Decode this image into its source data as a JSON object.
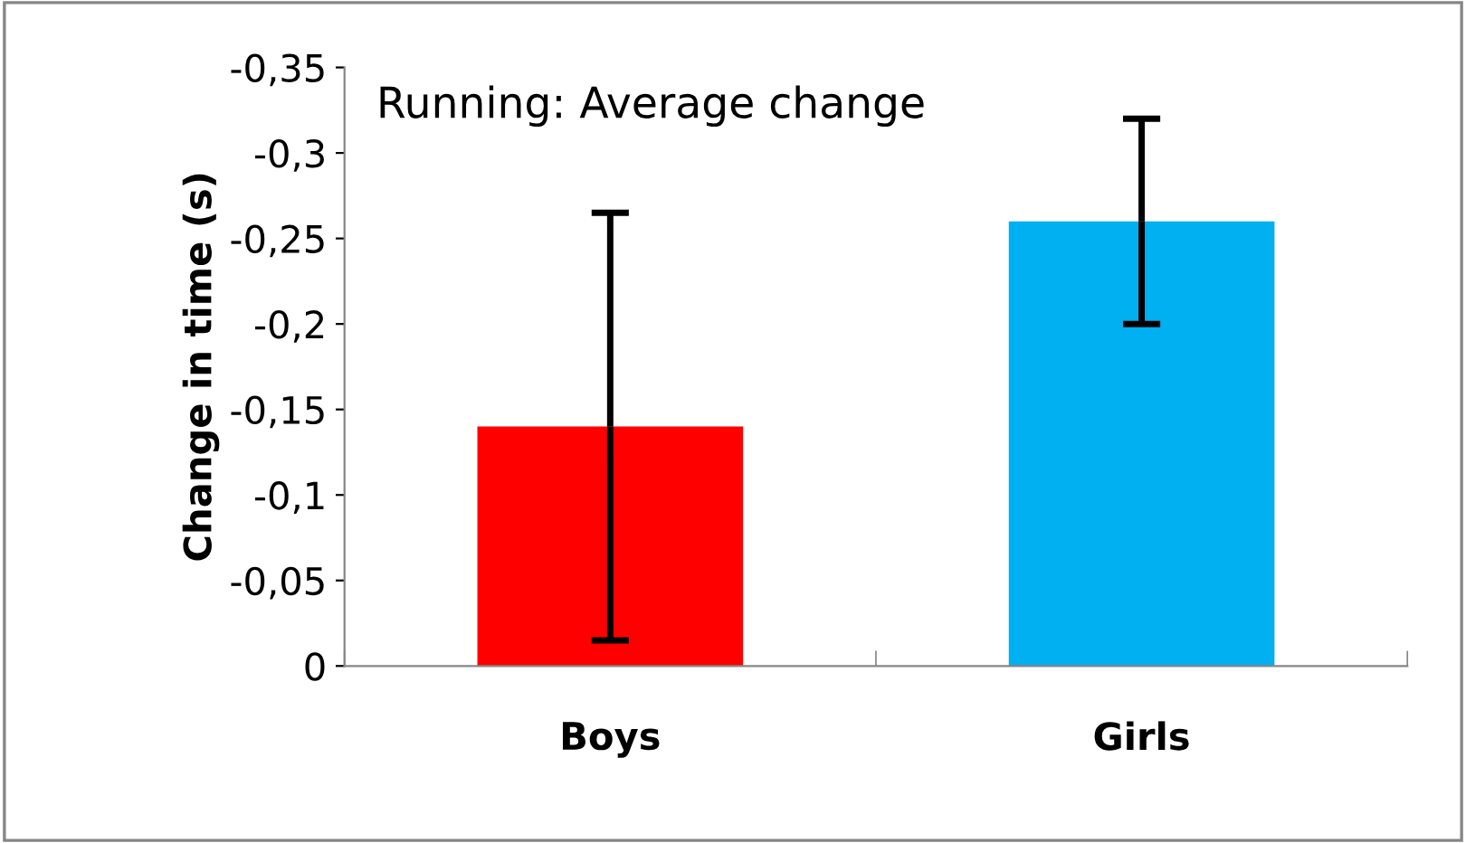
{
  "chart_data": {
    "type": "bar",
    "title": "Running: Average change",
    "ylabel": "Change in time (s)",
    "categories": [
      "Boys",
      "Girls"
    ],
    "values": [
      -0.14,
      -0.26
    ],
    "colors": [
      "#ff0000",
      "#00b0f0"
    ],
    "errors": [
      0.125,
      0.06
    ],
    "ylim": [
      0,
      -0.35
    ],
    "yticks": [
      0,
      {
        "value": -0.05,
        "label": "-0,05"
      },
      {
        "value": -0.1,
        "label": "-0,1"
      },
      {
        "value": -0.15,
        "label": "-0,15"
      },
      {
        "value": -0.2,
        "label": "-0,2"
      },
      {
        "value": -0.25,
        "label": "-0,25"
      },
      {
        "value": -0.3,
        "label": "-0,3"
      },
      {
        "value": -0.35,
        "label": "-0,35"
      }
    ],
    "grid": false,
    "legend": false
  }
}
